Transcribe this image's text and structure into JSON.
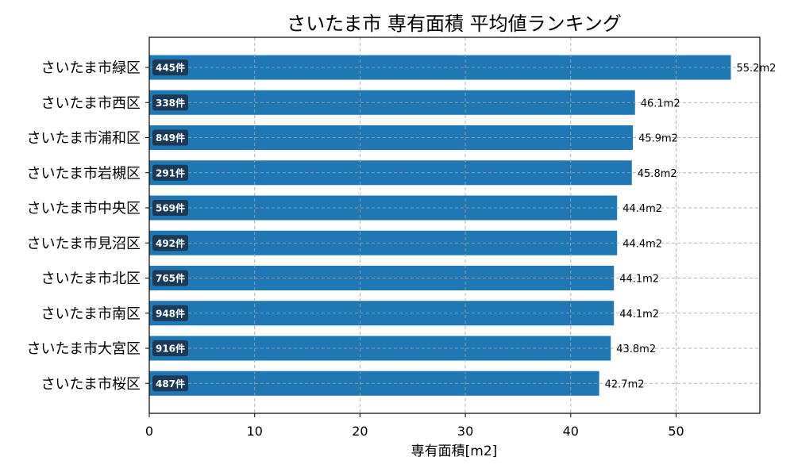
{
  "chart_data": {
    "type": "bar",
    "orientation": "horizontal",
    "title": "さいたま市 専有面積 平均値ランキング",
    "xlabel": "専有面積[m2]",
    "ylabel": "",
    "xlim": [
      0,
      58
    ],
    "xticks": [
      0,
      10,
      20,
      30,
      40,
      50
    ],
    "grid": true,
    "bar_color": "#1f77b4",
    "badge_color": "#1b3a57",
    "categories": [
      "さいたま市緑区",
      "さいたま市西区",
      "さいたま市浦和区",
      "さいたま市岩槻区",
      "さいたま市中央区",
      "さいたま市見沼区",
      "さいたま市北区",
      "さいたま市南区",
      "さいたま市大宮区",
      "さいたま市桜区"
    ],
    "values": [
      55.2,
      46.1,
      45.9,
      45.8,
      44.4,
      44.4,
      44.1,
      44.1,
      43.8,
      42.7
    ],
    "value_labels": [
      "55.2m2",
      "46.1m2",
      "45.9m2",
      "45.8m2",
      "44.4m2",
      "44.4m2",
      "44.1m2",
      "44.1m2",
      "43.8m2",
      "42.7m2"
    ],
    "count_labels": [
      "445件",
      "338件",
      "849件",
      "291件",
      "569件",
      "492件",
      "765件",
      "948件",
      "916件",
      "487件"
    ]
  }
}
